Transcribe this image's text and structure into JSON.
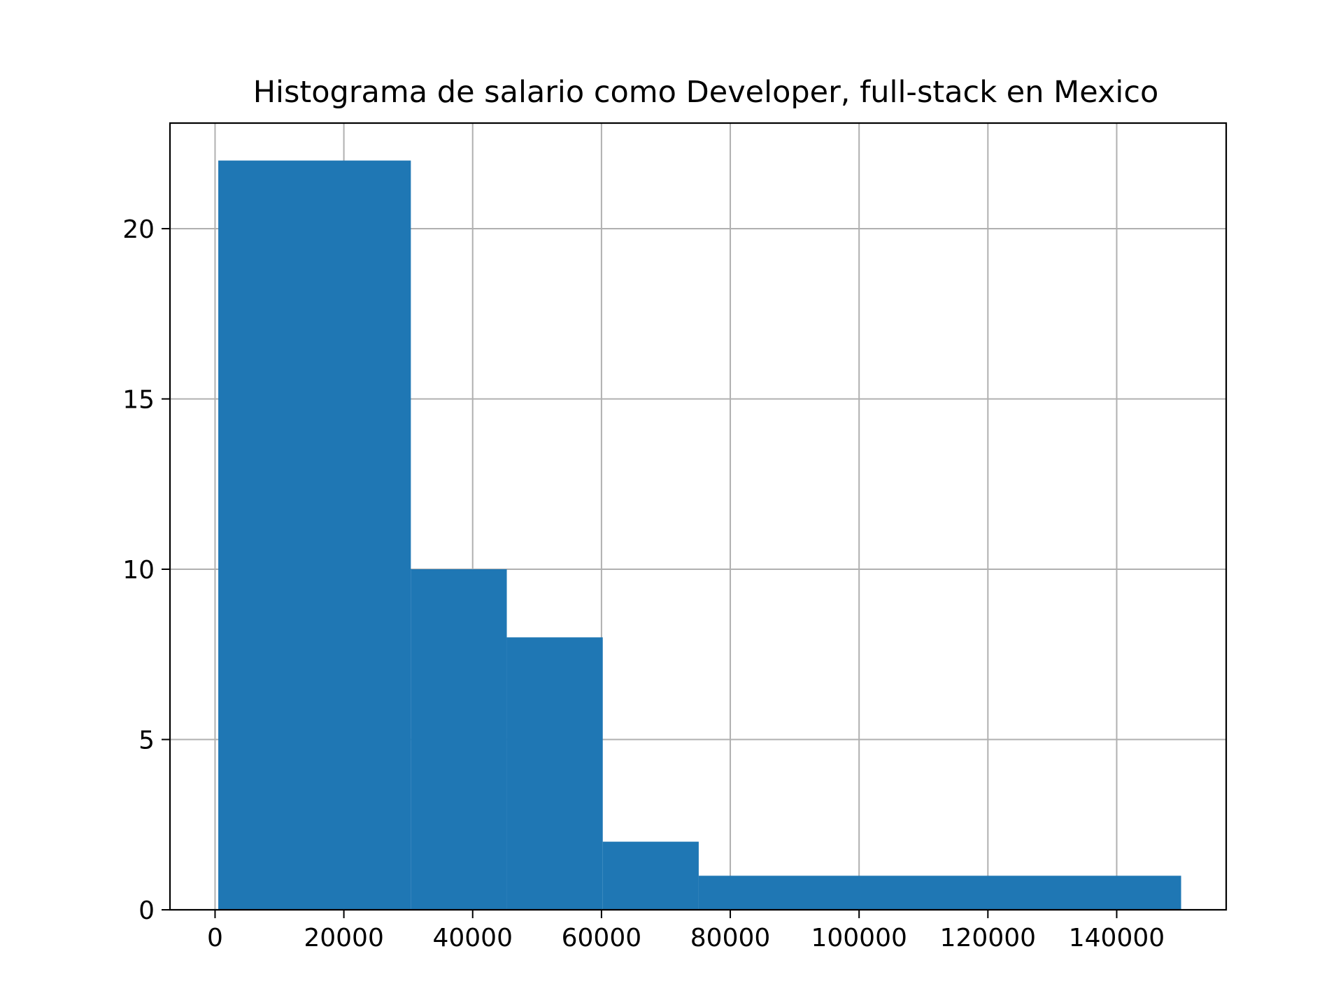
{
  "chart_data": {
    "type": "bar",
    "title": "Histograma de salario como Developer, full-stack en Mexico",
    "xlabel": "",
    "ylabel": "",
    "xlim": [
      -7000,
      157000
    ],
    "ylim": [
      0,
      23.1
    ],
    "grid": true,
    "bar_color": "#1f77b4",
    "grid_color": "#b0b0b0",
    "bins": [
      {
        "x0": 500,
        "x1": 30400,
        "count": 22
      },
      {
        "x0": 30400,
        "x1": 45300,
        "count": 10
      },
      {
        "x0": 45300,
        "x1": 60200,
        "count": 8
      },
      {
        "x0": 60200,
        "x1": 75100,
        "count": 2
      },
      {
        "x0": 75100,
        "x1": 150000,
        "count": 1
      }
    ],
    "x_ticks": [
      {
        "value": 0,
        "label": "0"
      },
      {
        "value": 20000,
        "label": "20000"
      },
      {
        "value": 40000,
        "label": "40000"
      },
      {
        "value": 60000,
        "label": "60000"
      },
      {
        "value": 80000,
        "label": "80000"
      },
      {
        "value": 100000,
        "label": "100000"
      },
      {
        "value": 120000,
        "label": "120000"
      },
      {
        "value": 140000,
        "label": "140000"
      }
    ],
    "y_ticks": [
      {
        "value": 0,
        "label": "0"
      },
      {
        "value": 5,
        "label": "5"
      },
      {
        "value": 10,
        "label": "10"
      },
      {
        "value": 15,
        "label": "15"
      },
      {
        "value": 20,
        "label": "20"
      }
    ]
  }
}
